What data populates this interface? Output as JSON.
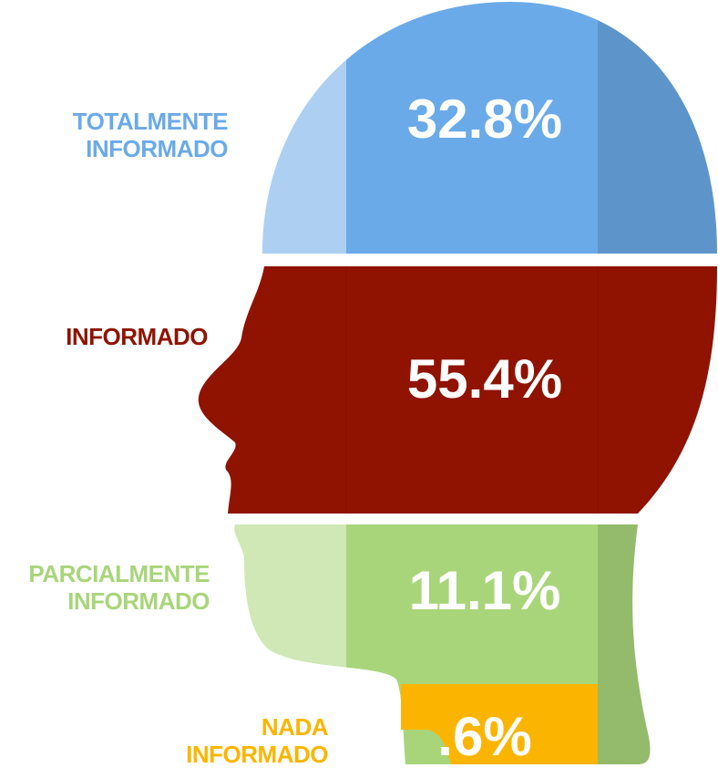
{
  "chart_data": {
    "type": "pictorial",
    "categories": [
      "TOTALMENTE\nINFORMADO",
      "INFORMADO",
      "PARCIALMENTE\nINFORMADO",
      "NADA\nINFORMADO"
    ],
    "values": [
      32.8,
      55.4,
      11.1,
      0.6
    ],
    "value_labels": [
      "32.8%",
      "55.4%",
      "11.1%",
      ".6%"
    ],
    "colors": [
      "#6aaae8",
      "#8f1300",
      "#a8d57a",
      "#fbb500"
    ]
  }
}
